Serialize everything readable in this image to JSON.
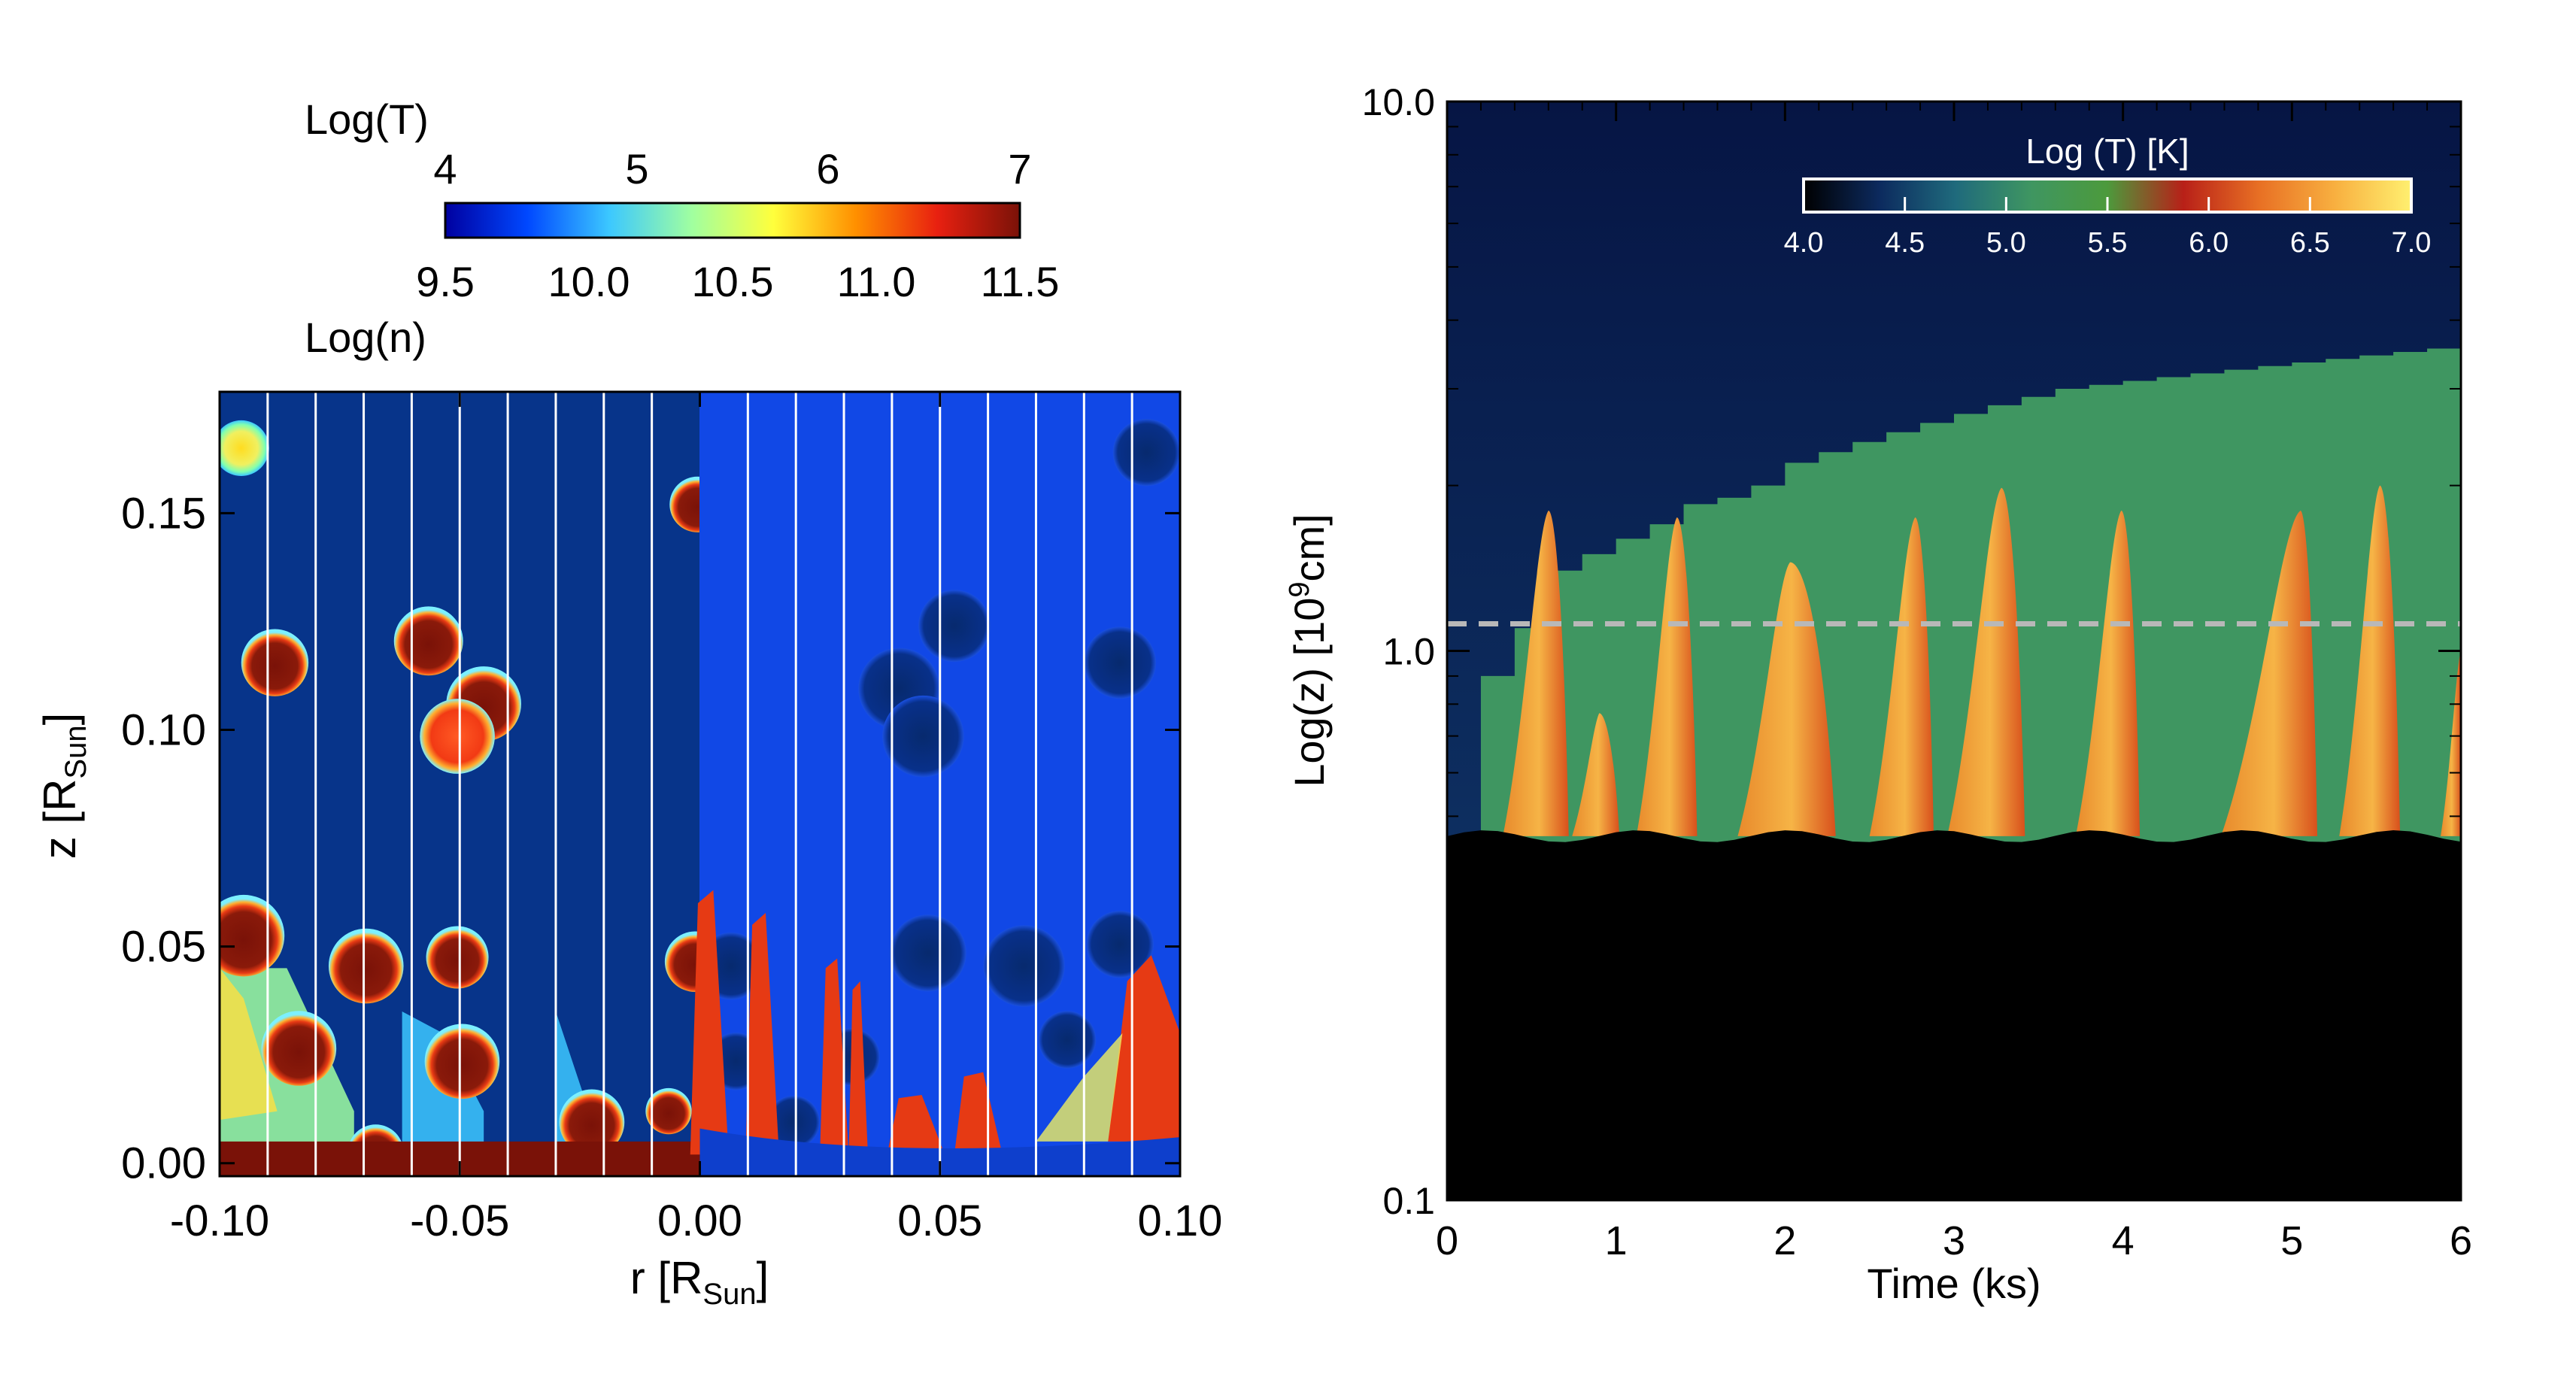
{
  "colors": {
    "background": "#07348a",
    "blob_dark": "#7a1208",
    "blob_rim_red": "#e83a14",
    "blob_rim_cyan": "#8af0ff",
    "right_dark_sky": "#081a4a",
    "right_green": "#3f9661",
    "right_flare": "#f1a43c",
    "right_black": "#000000",
    "dashed_line": "#b8b8b8"
  },
  "chart_data": [
    {
      "type": "heatmap",
      "title": "",
      "colorbar": {
        "top_label": "Log(T)",
        "top_ticks": [
          "4",
          "5",
          "6",
          "7"
        ],
        "bottom_ticks": [
          "9.5",
          "10.0",
          "10.5",
          "11.0",
          "11.5"
        ],
        "bottom_label": "Log(n)",
        "colormap": [
          "#0000a0",
          "#0048ff",
          "#3cc8ff",
          "#a0ffa0",
          "#ffff3c",
          "#ff9000",
          "#e82010",
          "#7a1208"
        ]
      },
      "xlabel": "r [R",
      "xlabel_sub": "Sun",
      "xlabel_end": "]",
      "ylabel": "z [R",
      "ylabel_sub": "Sun",
      "ylabel_end": "]",
      "xlim": [
        -0.1,
        0.1
      ],
      "ylim": [
        -0.003,
        0.178
      ],
      "xticks": [
        -0.1,
        -0.05,
        0.0,
        0.05,
        0.1
      ],
      "xtick_labels": [
        "-0.10",
        "-0.05",
        "0.00",
        "0.05",
        "0.10"
      ],
      "yticks": [
        0.0,
        0.05,
        0.1,
        0.15
      ],
      "ytick_labels": [
        "0.00",
        "0.05",
        "0.10",
        "0.15"
      ],
      "left_half": "Log(T)",
      "right_half": "Log(n)",
      "field_lines_r": [
        -0.09,
        -0.08,
        -0.07,
        -0.06,
        -0.05,
        -0.04,
        -0.03,
        -0.02,
        -0.01,
        0.01,
        0.02,
        0.03,
        0.04,
        0.05,
        0.06,
        0.07,
        0.08,
        0.09
      ],
      "blobs_left": [
        {
          "r": -0.0955,
          "z": 0.165,
          "rad": 0.0058,
          "kind": "warm"
        },
        {
          "r": -0.0005,
          "z": 0.152,
          "rad": 0.0058,
          "kind": "hot"
        },
        {
          "r": -0.0885,
          "z": 0.1155,
          "rad": 0.007,
          "kind": "hot"
        },
        {
          "r": -0.0565,
          "z": 0.1205,
          "rad": 0.0072,
          "kind": "hot"
        },
        {
          "r": -0.045,
          "z": 0.106,
          "rad": 0.0078,
          "kind": "hot"
        },
        {
          "r": -0.0505,
          "z": 0.0985,
          "rad": 0.0078,
          "kind": "bright"
        },
        {
          "r": -0.095,
          "z": 0.0525,
          "rad": 0.0085,
          "kind": "hot"
        },
        {
          "r": -0.0695,
          "z": 0.0455,
          "rad": 0.0078,
          "kind": "hot"
        },
        {
          "r": -0.0505,
          "z": 0.0475,
          "rad": 0.0065,
          "kind": "hot"
        },
        {
          "r": -0.0835,
          "z": 0.0265,
          "rad": 0.0078,
          "kind": "hot"
        },
        {
          "r": -0.0495,
          "z": 0.0235,
          "rad": 0.0078,
          "kind": "hot"
        },
        {
          "r": -0.0225,
          "z": 0.0095,
          "rad": 0.0068,
          "kind": "hot"
        },
        {
          "r": -0.0065,
          "z": 0.012,
          "rad": 0.0048,
          "kind": "hot"
        },
        {
          "r": -0.0675,
          "z": 0.0025,
          "rad": 0.0058,
          "kind": "hot"
        },
        {
          "r": -0.001,
          "z": 0.0465,
          "rad": 0.0063,
          "kind": "hot"
        }
      ],
      "blobs_right": [
        {
          "r": 0.093,
          "z": 0.164,
          "rad": 0.007
        },
        {
          "r": 0.053,
          "z": 0.124,
          "rad": 0.0075
        },
        {
          "r": 0.0875,
          "z": 0.1155,
          "rad": 0.0075
        },
        {
          "r": 0.0415,
          "z": 0.1095,
          "rad": 0.0085
        },
        {
          "r": 0.0465,
          "z": 0.0985,
          "rad": 0.0085
        },
        {
          "r": 0.0065,
          "z": 0.0455,
          "rad": 0.007
        },
        {
          "r": 0.0475,
          "z": 0.0485,
          "rad": 0.008
        },
        {
          "r": 0.0675,
          "z": 0.0455,
          "rad": 0.0085
        },
        {
          "r": 0.0875,
          "z": 0.0505,
          "rad": 0.007
        },
        {
          "r": 0.0075,
          "z": 0.0235,
          "rad": 0.006
        },
        {
          "r": 0.0315,
          "z": 0.0245,
          "rad": 0.006
        },
        {
          "r": 0.0765,
          "z": 0.0285,
          "rad": 0.006
        },
        {
          "r": 0.0195,
          "z": 0.0095,
          "rad": 0.0055
        }
      ],
      "chromosphere_height": 0.005
    },
    {
      "type": "heatmap",
      "title": "",
      "colorbar": {
        "label": "Log (T) [K]",
        "ticks": [
          "4.0",
          "4.5",
          "5.0",
          "5.5",
          "6.0",
          "6.5",
          "7.0"
        ],
        "colormap": [
          "#000000",
          "#0c2a5e",
          "#1f6a7c",
          "#3f9661",
          "#4c9a3c",
          "#b82018",
          "#e87024",
          "#f8b040",
          "#fff070"
        ]
      },
      "xlabel": "Time (ks)",
      "ylabel": "Log(z) [10",
      "ylabel_sup": "9",
      "ylabel_end": "cm]",
      "xlim": [
        0,
        6
      ],
      "ylim_log": [
        -1,
        1
      ],
      "xtick_labels": [
        "0",
        "1",
        "2",
        "3",
        "4",
        "5",
        "6"
      ],
      "ytick_labels": [
        "0.1",
        "1.0",
        "10.0"
      ],
      "dashed_line_z": 1.12,
      "chromosphere_top_z": 0.46,
      "transition_region_z": [
        [
          0.0,
          0.45
        ],
        [
          0.2,
          0.9
        ],
        [
          0.4,
          1.1
        ],
        [
          0.6,
          1.4
        ],
        [
          0.8,
          1.5
        ],
        [
          1.0,
          1.6
        ],
        [
          1.2,
          1.7
        ],
        [
          1.4,
          1.85
        ],
        [
          1.6,
          1.9
        ],
        [
          1.8,
          2.0
        ],
        [
          2.0,
          2.2
        ],
        [
          2.2,
          2.3
        ],
        [
          2.4,
          2.4
        ],
        [
          2.6,
          2.5
        ],
        [
          2.8,
          2.6
        ],
        [
          3.0,
          2.7
        ],
        [
          3.2,
          2.8
        ],
        [
          3.4,
          2.9
        ],
        [
          3.6,
          3.0
        ],
        [
          3.8,
          3.05
        ],
        [
          4.0,
          3.1
        ],
        [
          4.2,
          3.15
        ],
        [
          4.4,
          3.2
        ],
        [
          4.6,
          3.25
        ],
        [
          4.8,
          3.3
        ],
        [
          5.0,
          3.35
        ],
        [
          5.2,
          3.4
        ],
        [
          5.4,
          3.45
        ],
        [
          5.6,
          3.5
        ],
        [
          5.8,
          3.55
        ],
        [
          6.0,
          3.6
        ]
      ],
      "flares": [
        {
          "t0": 0.33,
          "tpeak": 0.6,
          "t1": 0.72,
          "zpeak": 1.8
        },
        {
          "t0": 0.74,
          "tpeak": 0.9,
          "t1": 1.02,
          "zpeak": 0.77
        },
        {
          "t0": 1.12,
          "tpeak": 1.36,
          "t1": 1.48,
          "zpeak": 1.75
        },
        {
          "t0": 1.72,
          "tpeak": 2.03,
          "t1": 2.3,
          "zpeak": 1.45
        },
        {
          "t0": 2.5,
          "tpeak": 2.77,
          "t1": 2.88,
          "zpeak": 1.75
        },
        {
          "t0": 2.96,
          "tpeak": 3.28,
          "t1": 3.42,
          "zpeak": 1.98
        },
        {
          "t0": 3.72,
          "tpeak": 3.99,
          "t1": 4.1,
          "zpeak": 1.8
        },
        {
          "t0": 4.58,
          "tpeak": 5.05,
          "t1": 5.15,
          "zpeak": 1.8
        },
        {
          "t0": 5.28,
          "tpeak": 5.52,
          "t1": 5.64,
          "zpeak": 2.0
        },
        {
          "t0": 5.88,
          "tpeak": 6.0,
          "t1": 6.0,
          "zpeak": 1.0
        }
      ]
    }
  ]
}
